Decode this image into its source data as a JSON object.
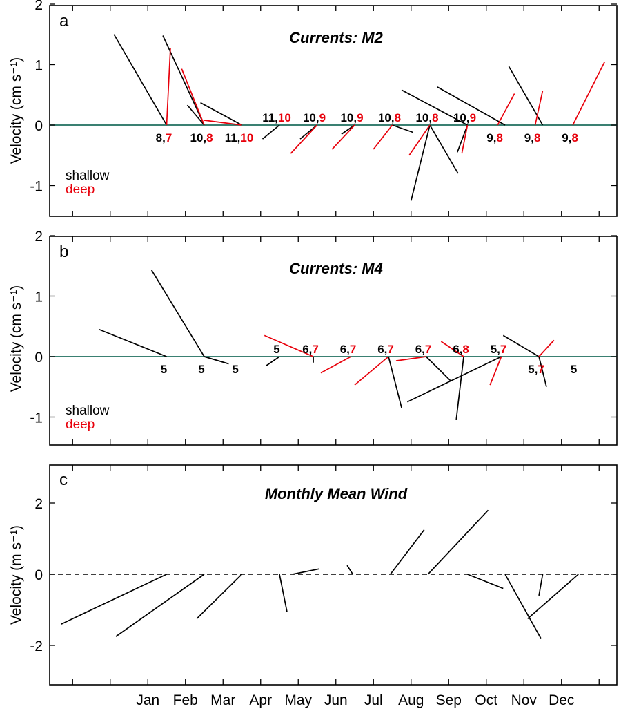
{
  "colors": {
    "shallow": "#000000",
    "deep": "#e8000b",
    "zero_line_currents": "#1e6e5e",
    "zero_line_wind": "#000000"
  },
  "x_axis": {
    "month_labels": [
      "Jan",
      "Feb",
      "Mar",
      "Apr",
      "May",
      "Jun",
      "Jul",
      "Aug",
      "Sep",
      "Oct",
      "Nov",
      "Dec"
    ]
  },
  "legend": {
    "shallow": "shallow",
    "deep": "deep",
    "placement": "left, lower part of panels a and b"
  },
  "chart_data": [
    {
      "type": "vector-stick",
      "panel_letter": "a",
      "title": "Currents: M2",
      "ylabel": "Velocity (cm s⁻¹)",
      "ylim": [
        -1.5,
        2
      ],
      "yticks": [
        2,
        1,
        0,
        -1
      ],
      "zero_line": "solid",
      "series": [
        {
          "name": "shallow",
          "color": "shallow",
          "sticks": [
            {
              "x": 1.0,
              "u": -1.4,
              "v": 1.5
            },
            {
              "x": 2.0,
              "u": -1.1,
              "v": 1.48
            },
            {
              "x": 2.0,
              "u": -0.45,
              "v": 0.33
            },
            {
              "x": 3.0,
              "u": -1.1,
              "v": 0.37
            },
            {
              "x": 4.0,
              "u": -0.45,
              "v": -0.23
            },
            {
              "x": 5.0,
              "u": -0.45,
              "v": -0.23
            },
            {
              "x": 6.0,
              "u": -0.35,
              "v": -0.15
            },
            {
              "x": 7.0,
              "u": 0.55,
              "v": -0.12
            },
            {
              "x": 8.0,
              "u": 0.75,
              "v": -0.8
            },
            {
              "x": 8.0,
              "u": -0.5,
              "v": -1.25
            },
            {
              "x": 9.0,
              "u": -0.27,
              "v": -0.45
            },
            {
              "x": 9.0,
              "u": -1.75,
              "v": 0.58
            },
            {
              "x": 10.0,
              "u": -1.8,
              "v": 0.63
            },
            {
              "x": 11.0,
              "u": -0.9,
              "v": 0.97
            }
          ]
        },
        {
          "name": "deep",
          "color": "deep",
          "sticks": [
            {
              "x": 1.0,
              "u": 0.1,
              "v": 1.27
            },
            {
              "x": 2.0,
              "u": -0.6,
              "v": 0.93
            },
            {
              "x": 3.0,
              "u": -1.0,
              "v": 0.08
            },
            {
              "x": 5.0,
              "u": -0.7,
              "v": -0.47
            },
            {
              "x": 6.0,
              "u": -0.6,
              "v": -0.4
            },
            {
              "x": 7.0,
              "u": -0.5,
              "v": -0.4
            },
            {
              "x": 8.0,
              "u": -0.55,
              "v": -0.5
            },
            {
              "x": 9.0,
              "u": -0.15,
              "v": -0.47
            },
            {
              "x": 9.8,
              "u": 0.45,
              "v": 0.52
            },
            {
              "x": 10.8,
              "u": 0.2,
              "v": 0.57
            },
            {
              "x": 11.8,
              "u": 0.85,
              "v": 1.05
            }
          ]
        }
      ],
      "labels": [
        {
          "x": 1.0,
          "above": false,
          "shallow": "8",
          "deep": "7"
        },
        {
          "x": 2.0,
          "above": false,
          "shallow": "10",
          "deep": "8"
        },
        {
          "x": 3.0,
          "above": false,
          "shallow": "11",
          "deep": "10"
        },
        {
          "x": 4.0,
          "above": true,
          "shallow": "11",
          "deep": "10"
        },
        {
          "x": 5.0,
          "above": true,
          "shallow": "10",
          "deep": "9"
        },
        {
          "x": 6.0,
          "above": true,
          "shallow": "10",
          "deep": "9"
        },
        {
          "x": 7.0,
          "above": true,
          "shallow": "10",
          "deep": "8"
        },
        {
          "x": 8.0,
          "above": true,
          "shallow": "10",
          "deep": "8"
        },
        {
          "x": 9.0,
          "above": true,
          "shallow": "10",
          "deep": "9"
        },
        {
          "x": 9.8,
          "above": false,
          "shallow": "9",
          "deep": "8"
        },
        {
          "x": 10.8,
          "above": false,
          "shallow": "9",
          "deep": "8"
        },
        {
          "x": 11.8,
          "above": false,
          "shallow": "9",
          "deep": "8"
        }
      ]
    },
    {
      "type": "vector-stick",
      "panel_letter": "b",
      "title": "Currents: M4",
      "ylabel": "Velocity (cm s⁻¹)",
      "ylim": [
        -1.45,
        2
      ],
      "yticks": [
        2,
        1,
        0,
        -1
      ],
      "zero_line": "solid",
      "series": [
        {
          "name": "shallow",
          "color": "shallow",
          "sticks": [
            {
              "x": 1.0,
              "u": -1.8,
              "v": 0.45
            },
            {
              "x": 2.0,
              "u": -1.4,
              "v": 1.43
            },
            {
              "x": 2.0,
              "u": 0.65,
              "v": -0.12
            },
            {
              "x": 4.0,
              "u": -0.35,
              "v": -0.15
            },
            {
              "x": 4.9,
              "u": 0.0,
              "v": -0.1
            },
            {
              "x": 6.9,
              "u": 0.35,
              "v": -0.85
            },
            {
              "x": 7.9,
              "u": 0.65,
              "v": -0.4
            },
            {
              "x": 8.9,
              "u": -0.2,
              "v": -1.05
            },
            {
              "x": 9.9,
              "u": -2.5,
              "v": -0.75
            },
            {
              "x": 10.9,
              "u": -0.95,
              "v": 0.35
            },
            {
              "x": 10.9,
              "u": 0.2,
              "v": -0.5
            }
          ]
        },
        {
          "name": "deep",
          "color": "deep",
          "sticks": [
            {
              "x": 4.9,
              "u": -1.3,
              "v": 0.35
            },
            {
              "x": 5.9,
              "u": -0.8,
              "v": -0.27
            },
            {
              "x": 6.9,
              "u": -0.9,
              "v": -0.47
            },
            {
              "x": 7.9,
              "u": -0.8,
              "v": -0.07
            },
            {
              "x": 8.9,
              "u": -0.6,
              "v": 0.25
            },
            {
              "x": 9.9,
              "u": -0.3,
              "v": -0.47
            },
            {
              "x": 10.9,
              "u": 0.4,
              "v": 0.27
            }
          ]
        }
      ],
      "labels": [
        {
          "x": 1.0,
          "above": false,
          "shallow": "5",
          "deep": ""
        },
        {
          "x": 2.0,
          "above": false,
          "shallow": "5",
          "deep": ""
        },
        {
          "x": 2.9,
          "above": false,
          "shallow": "5",
          "deep": ""
        },
        {
          "x": 4.0,
          "above": true,
          "shallow": "5",
          "deep": ""
        },
        {
          "x": 4.9,
          "above": true,
          "shallow": "6",
          "deep": "7"
        },
        {
          "x": 5.9,
          "above": true,
          "shallow": "6",
          "deep": "7"
        },
        {
          "x": 6.9,
          "above": true,
          "shallow": "6",
          "deep": "7"
        },
        {
          "x": 7.9,
          "above": true,
          "shallow": "6",
          "deep": "7"
        },
        {
          "x": 8.9,
          "above": true,
          "shallow": "6",
          "deep": "8"
        },
        {
          "x": 9.9,
          "above": true,
          "shallow": "5",
          "deep": "7"
        },
        {
          "x": 10.9,
          "above": false,
          "shallow": "5",
          "deep": "7"
        },
        {
          "x": 11.9,
          "above": false,
          "shallow": "5",
          "deep": ""
        }
      ]
    },
    {
      "type": "vector-stick",
      "panel_letter": "c",
      "title": "Monthly Mean Wind",
      "ylabel": "Velocity (m s⁻¹)",
      "ylim": [
        -3.1,
        3
      ],
      "yticks": [
        2,
        0,
        -2
      ],
      "zero_line": "dashed",
      "series": [
        {
          "name": "",
          "color": "shallow",
          "sticks": [
            {
              "x": 1.0,
              "u": -2.8,
              "v": -1.4
            },
            {
              "x": 2.0,
              "u": -2.35,
              "v": -1.75
            },
            {
              "x": 3.0,
              "u": -1.2,
              "v": -1.25
            },
            {
              "x": 4.0,
              "u": 0.2,
              "v": -1.05
            },
            {
              "x": 4.35,
              "u": 0.7,
              "v": 0.15
            },
            {
              "x": 5.95,
              "u": -0.15,
              "v": 0.25
            },
            {
              "x": 6.95,
              "u": 0.9,
              "v": 1.25
            },
            {
              "x": 7.95,
              "u": 1.6,
              "v": 1.8
            },
            {
              "x": 9.0,
              "u": 0.95,
              "v": -0.4
            },
            {
              "x": 10.0,
              "u": 0.95,
              "v": -1.8
            },
            {
              "x": 11.0,
              "u": -0.1,
              "v": -0.6
            },
            {
              "x": 11.95,
              "u": -1.35,
              "v": -1.25
            }
          ]
        }
      ],
      "labels": []
    }
  ]
}
